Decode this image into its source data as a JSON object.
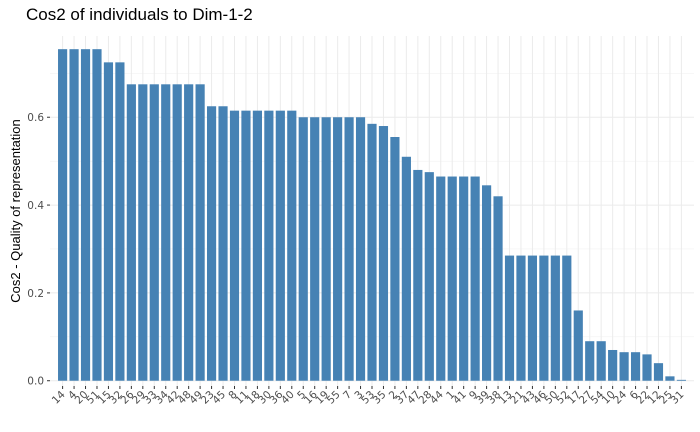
{
  "chart_data": {
    "type": "bar",
    "title": "Cos2 of individuals to Dim-1-2",
    "xlabel": "",
    "ylabel": "Cos2 - Quality of representation",
    "ylim": [
      -0.012,
      0.785
    ],
    "yticks": [
      0.0,
      0.2,
      0.4,
      0.6
    ],
    "ytick_labels": [
      "0.0",
      "0.2",
      "0.4",
      "0.6"
    ],
    "grid": true,
    "bar_color": "#4682B4",
    "categories": [
      "14",
      "4",
      "20",
      "51",
      "15",
      "32",
      "26",
      "29",
      "33",
      "34",
      "42",
      "48",
      "49",
      "23",
      "45",
      "8",
      "11",
      "18",
      "30",
      "36",
      "40",
      "5",
      "16",
      "19",
      "55",
      "7",
      "3",
      "53",
      "35",
      "2",
      "37",
      "47",
      "28",
      "44",
      "1",
      "41",
      "9",
      "39",
      "38",
      "13",
      "21",
      "43",
      "46",
      "50",
      "52",
      "17",
      "27",
      "54",
      "10",
      "24",
      "6",
      "22",
      "12",
      "25",
      "31"
    ],
    "values": [
      0.755,
      0.755,
      0.755,
      0.755,
      0.725,
      0.725,
      0.675,
      0.675,
      0.675,
      0.675,
      0.675,
      0.675,
      0.675,
      0.625,
      0.625,
      0.615,
      0.615,
      0.615,
      0.615,
      0.615,
      0.615,
      0.6,
      0.6,
      0.6,
      0.6,
      0.6,
      0.6,
      0.585,
      0.58,
      0.555,
      0.51,
      0.48,
      0.475,
      0.465,
      0.465,
      0.465,
      0.465,
      0.445,
      0.42,
      0.285,
      0.285,
      0.285,
      0.285,
      0.285,
      0.285,
      0.16,
      0.09,
      0.09,
      0.07,
      0.065,
      0.065,
      0.06,
      0.04,
      0.01,
      0.002
    ]
  }
}
